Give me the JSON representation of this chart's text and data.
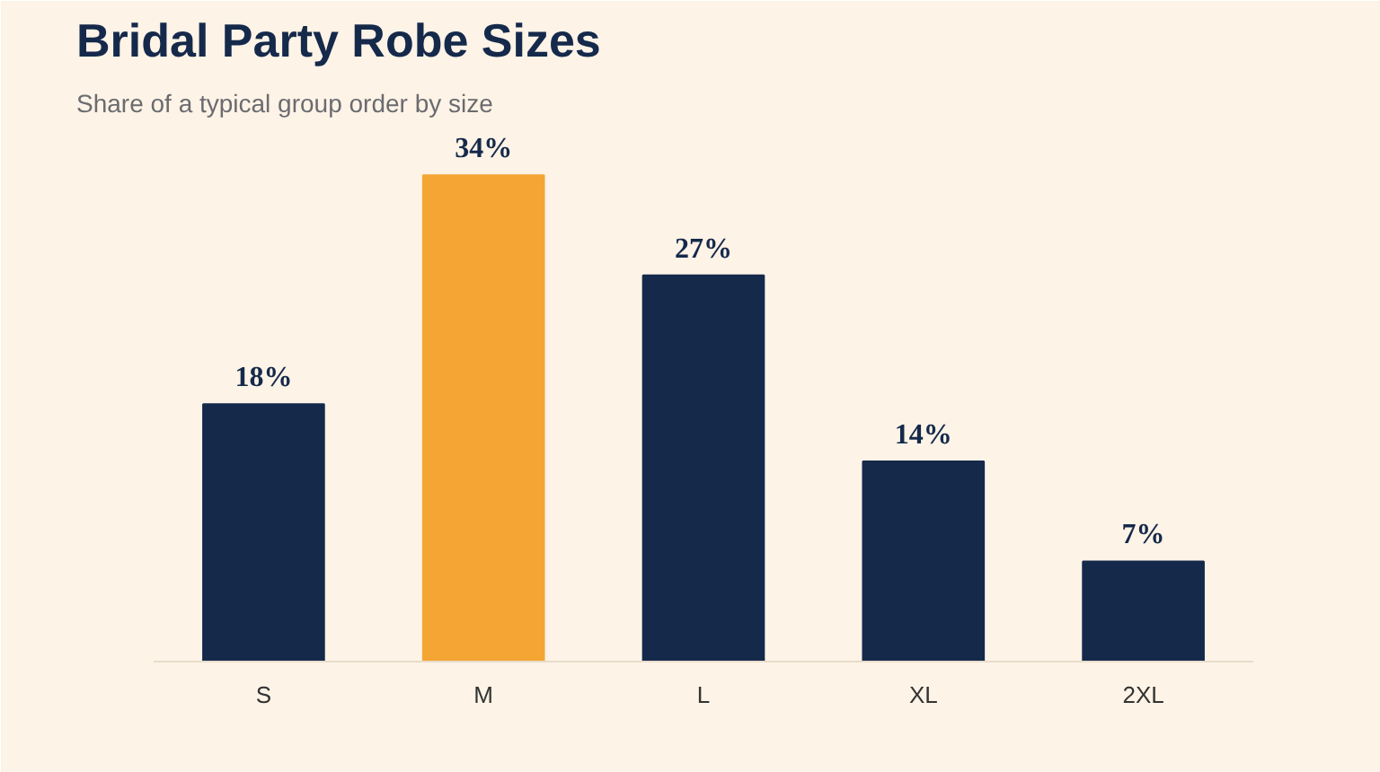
{
  "chart_data": {
    "type": "bar",
    "title": "Bridal Party Robe Sizes",
    "subtitle": "Share of a typical group order by size",
    "categories": [
      "S",
      "M",
      "L",
      "XL",
      "2XL"
    ],
    "values": [
      18,
      34,
      27,
      14,
      7
    ],
    "value_labels": [
      "18%",
      "34%",
      "27%",
      "14%",
      "7%"
    ],
    "colors": [
      "#15294b",
      "#f5a534",
      "#15294b",
      "#15294b",
      "#15294b"
    ]
  }
}
